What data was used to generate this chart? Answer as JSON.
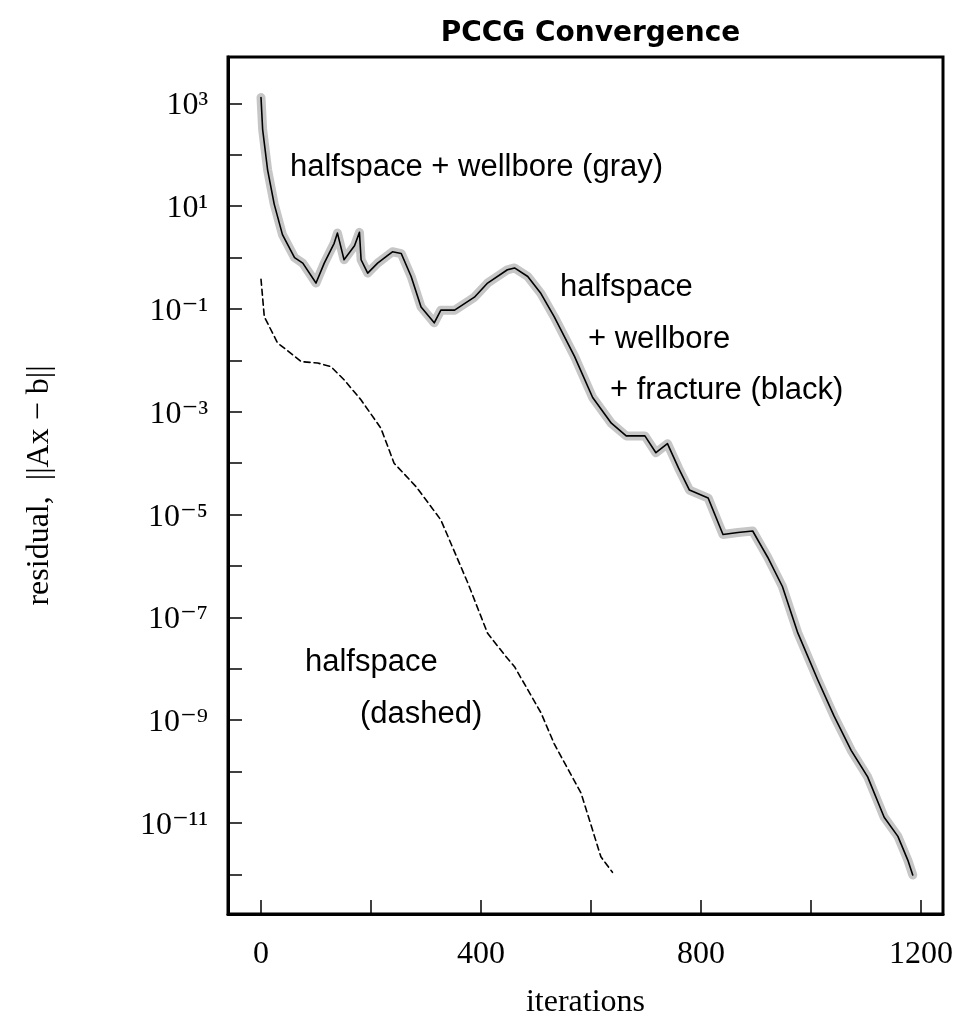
{
  "chart_data": {
    "type": "line",
    "title": "PCCG Convergence",
    "xlabel": "iterations",
    "ylabel": "residual,  ||Ax − b||",
    "log": "y",
    "marker": "none",
    "xlim": [
      -60,
      1240
    ],
    "ylim": [
      1.7e-13,
      8000
    ],
    "xticks": [
      0,
      {
        "value": 200,
        "label": null
      },
      400,
      {
        "value": 600,
        "label": null
      },
      800,
      {
        "value": 1000,
        "label": null
      },
      1200
    ],
    "yticks": [
      {
        "value": 1000,
        "label": "10³"
      },
      {
        "value": 100,
        "label": null
      },
      {
        "value": 10,
        "label": "10¹"
      },
      {
        "value": 1,
        "label": null
      },
      {
        "value": 0.1,
        "label": "10⁻¹"
      },
      {
        "value": 0.01,
        "label": null
      },
      {
        "value": 0.001,
        "label": "10⁻³"
      },
      {
        "value": 0.0001,
        "label": null
      },
      {
        "value": 1e-05,
        "label": "10⁻⁵"
      },
      {
        "value": 1e-06,
        "label": null
      },
      {
        "value": 1e-07,
        "label": "10⁻⁷"
      },
      {
        "value": 1e-08,
        "label": null
      },
      {
        "value": 1e-09,
        "label": "10⁻⁹"
      },
      {
        "value": 1e-10,
        "label": null
      },
      {
        "value": 1e-11,
        "label": "10⁻¹¹"
      },
      {
        "value": 1e-12,
        "label": null
      }
    ],
    "series": [
      {
        "color": "#c6c6c6",
        "line_style": "solid",
        "x": [
          0,
          3,
          12,
          24,
          39,
          61,
          76,
          100,
          115,
          133,
          139,
          151,
          170,
          179,
          182,
          194,
          212,
          239,
          255,
          273,
          291,
          315,
          327,
          352,
          388,
          412,
          448,
          461,
          485,
          509,
          533,
          570,
          603,
          637,
          664,
          698,
          718,
          739,
          759,
          779,
          813,
          840,
          867,
          894,
          921,
          948,
          976,
          1012,
          1042,
          1073,
          1103,
          1133,
          1158,
          1176,
          1185
        ],
        "values": [
          1300,
          310,
          51,
          11,
          2.8,
          1.0,
          0.78,
          0.32,
          0.78,
          1.9,
          3.0,
          0.91,
          1.7,
          3.1,
          0.91,
          0.5,
          0.78,
          1.3,
          1.2,
          0.43,
          0.11,
          0.054,
          0.095,
          0.095,
          0.17,
          0.32,
          0.58,
          0.63,
          0.43,
          0.2,
          0.071,
          0.012,
          0.0019,
          0.0006,
          0.00034,
          0.00034,
          0.00016,
          0.00024,
          8.1e-05,
          3e-05,
          2.1e-05,
          4.1e-06,
          4.5e-06,
          4.8e-06,
          1.5e-06,
          4e-07,
          5e-08,
          6.2e-09,
          1.2e-09,
          2.6e-10,
          7.9e-11,
          1.3e-11,
          5.5e-12,
          1.9e-12,
          9.8e-13
        ]
      },
      {
        "color": "#000000",
        "line_style": "solid",
        "x": [
          0,
          3,
          12,
          24,
          39,
          61,
          76,
          100,
          115,
          133,
          139,
          151,
          170,
          179,
          182,
          194,
          212,
          239,
          255,
          273,
          291,
          315,
          327,
          352,
          388,
          412,
          448,
          461,
          485,
          509,
          533,
          570,
          603,
          637,
          664,
          698,
          718,
          739,
          759,
          779,
          813,
          840,
          867,
          894,
          921,
          948,
          976,
          1012,
          1042,
          1073,
          1103,
          1133,
          1158,
          1176,
          1185
        ],
        "values": [
          1300,
          310,
          51,
          11,
          2.8,
          1.0,
          0.78,
          0.32,
          0.78,
          1.9,
          3.0,
          0.91,
          1.7,
          3.1,
          0.91,
          0.5,
          0.78,
          1.3,
          1.2,
          0.43,
          0.11,
          0.054,
          0.095,
          0.095,
          0.17,
          0.32,
          0.58,
          0.63,
          0.43,
          0.2,
          0.071,
          0.012,
          0.0019,
          0.0006,
          0.00034,
          0.00034,
          0.00016,
          0.00024,
          8.1e-05,
          3e-05,
          2.1e-05,
          4.1e-06,
          4.5e-06,
          4.8e-06,
          1.5e-06,
          4e-07,
          5e-08,
          6.2e-09,
          1.2e-09,
          2.6e-10,
          7.9e-11,
          1.3e-11,
          5.5e-12,
          1.9e-12,
          9.8e-13
        ]
      },
      {
        "color": "#000000",
        "line_style": "dashed",
        "x": [
          0,
          6,
          30,
          73,
          103,
          127,
          151,
          182,
          218,
          242,
          282,
          327,
          376,
          412,
          448,
          461,
          509,
          533,
          582,
          618,
          639
        ],
        "values": [
          0.38,
          0.071,
          0.022,
          0.0095,
          0.0089,
          0.0076,
          0.0042,
          0.0017,
          0.00048,
          0.0001,
          3.5e-05,
          7.9e-06,
          4.7e-07,
          4.9e-08,
          1.6e-08,
          1.1e-08,
          1.4e-09,
          3.5e-10,
          3.8e-11,
          2.2e-12,
          1.1e-12
        ]
      }
    ],
    "annotations": [
      "halfspace + wellbore (gray)",
      "halfspace",
      "+ wellbore",
      "+ fracture (black)",
      "halfspace",
      "(dashed)"
    ]
  }
}
